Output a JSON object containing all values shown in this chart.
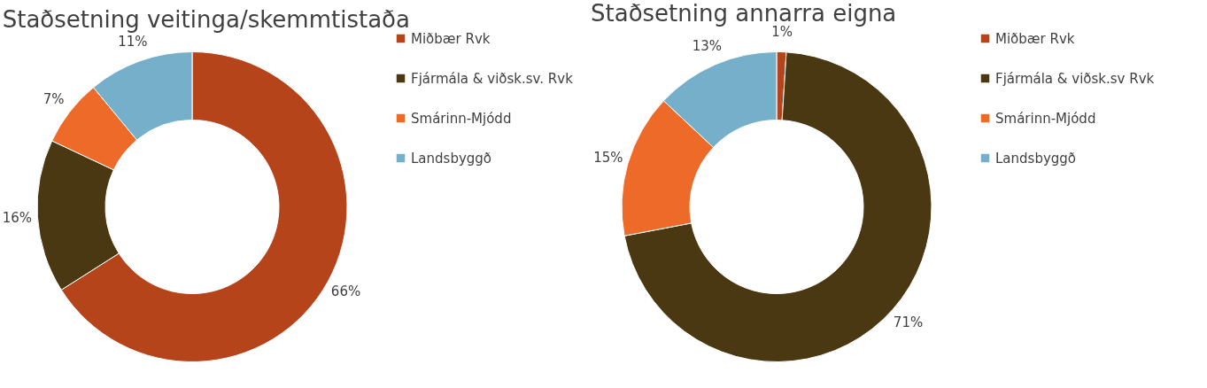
{
  "chart_data": [
    {
      "type": "donut",
      "title": "Staðsetning veitinga/skemmtistaða",
      "categories": [
        "Miðbær Rvk",
        "Fjármála & viðsk.sv. Rvk",
        "Smárinn-Mjódd",
        "Landsbyggð"
      ],
      "values": [
        66,
        16,
        7,
        11
      ],
      "value_labels": [
        "66%",
        "16%",
        "7%",
        "11%"
      ],
      "colors": [
        "#b5441a",
        "#4a3812",
        "#ee6a28",
        "#76afc9"
      ],
      "legend": "right"
    },
    {
      "type": "donut",
      "title": "Staðsetning annarra eigna",
      "categories": [
        "Miðbær Rvk",
        "Fjármála & viðsk.sv Rvk",
        "Smárinn-Mjódd",
        "Landsbyggð"
      ],
      "values": [
        1,
        71,
        15,
        13
      ],
      "value_labels": [
        "1%",
        "71%",
        "15%",
        "13%"
      ],
      "colors": [
        "#b5441a",
        "#4a3812",
        "#ee6a28",
        "#76afc9"
      ],
      "legend": "right"
    }
  ]
}
